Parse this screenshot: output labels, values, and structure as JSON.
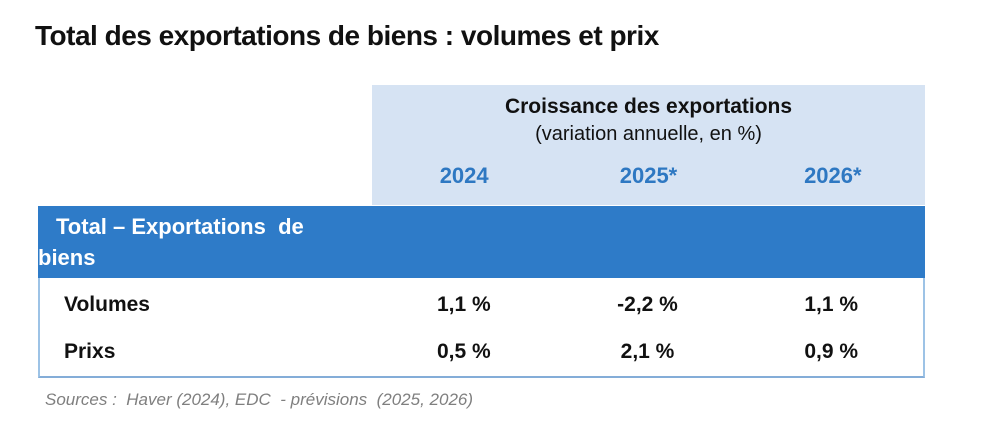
{
  "page": {
    "title": "Total des exportations de biens : volumes et prix"
  },
  "table": {
    "header": {
      "title": "Croissance des exportations",
      "subtitle": "(variation annuelle, en %)",
      "years": [
        "2024",
        "2025*",
        "2026*"
      ]
    },
    "banner": {
      "line1": "Total – Exportations  de",
      "line2": "biens"
    },
    "rows": [
      {
        "label": "Volumes",
        "values": [
          "1,1 %",
          "-2,2 %",
          "1,1 %"
        ]
      },
      {
        "label": "Prixs",
        "values": [
          "0,5 %",
          "2,1 %",
          "0,9 %"
        ]
      }
    ]
  },
  "footer": {
    "sources": "Sources :  Haver (2024), EDC  - prévisions  (2025, 2026)"
  },
  "colors": {
    "banner_blue": "#2E7BC8",
    "header_light_blue": "#D6E3F3",
    "year_text_blue": "#2E78C2",
    "border_blue": "#9DC3E6",
    "source_gray": "#7F7F7F"
  }
}
